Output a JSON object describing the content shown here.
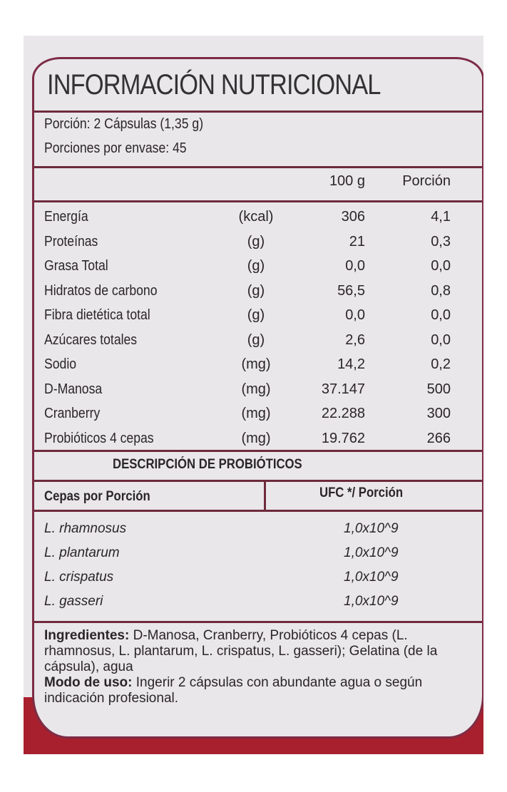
{
  "title": "INFORMACIÓN NUTRICIONAL",
  "serving": "Porción: 2 Cápsulas (1,35 g)",
  "servings_per_container": "Porciones por envase: 45",
  "columns": {
    "per100": "100 g",
    "per_serving": "Porción"
  },
  "nutrients": [
    {
      "name": "Energía",
      "unit": "(kcal)",
      "per100": "306",
      "per_serving": "4,1"
    },
    {
      "name": "Proteínas",
      "unit": "(g)",
      "per100": "21",
      "per_serving": "0,3"
    },
    {
      "name": "Grasa Total",
      "unit": "(g)",
      "per100": "0,0",
      "per_serving": "0,0"
    },
    {
      "name": "Hidratos de carbono",
      "unit": "(g)",
      "per100": "56,5",
      "per_serving": "0,8"
    },
    {
      "name": "Fibra dietética total",
      "unit": "(g)",
      "per100": "0,0",
      "per_serving": "0,0"
    },
    {
      "name": "Azúcares totales",
      "unit": "(g)",
      "per100": "2,6",
      "per_serving": "0,0"
    },
    {
      "name": "Sodio",
      "unit": "(mg)",
      "per100": "14,2",
      "per_serving": "0,2"
    },
    {
      "name": "D-Manosa",
      "unit": "(mg)",
      "per100": "37.147",
      "per_serving": "500"
    },
    {
      "name": "Cranberry",
      "unit": "(mg)",
      "per100": "22.288",
      "per_serving": "300"
    },
    {
      "name": "Probióticos 4 cepas",
      "unit": "(mg)",
      "per100": "19.762",
      "per_serving": "266"
    }
  ],
  "probiotics": {
    "heading": "DESCRIPCIÓN DE PROBIÓTICOS",
    "col_strain": "Cepas por Porción",
    "col_cfu": "UFC */ Porción",
    "strains": [
      {
        "name": "L. rhamnosus",
        "cfu": "1,0x10^9"
      },
      {
        "name": "L. plantarum",
        "cfu": "1,0x10^9"
      },
      {
        "name": "L. crispatus",
        "cfu": "1,0x10^9"
      },
      {
        "name": "L. gasseri",
        "cfu": "1,0x10^9"
      }
    ]
  },
  "ingredients": {
    "label": "Ingredientes:",
    "text": " D-Manosa, Cranberry, Probióticos 4 cepas (L. rhamnosus, L. plantarum, L. crispatus, L. gasseri); Gelatina (de la cápsula), agua"
  },
  "usage": {
    "label": "Modo de uso:",
    "text": " Ingerir 2 cápsulas con abundante agua o según indicación profesional."
  },
  "colors": {
    "border": "#7d2c45",
    "band": "#a8202e",
    "background": "#e9e7ea"
  }
}
